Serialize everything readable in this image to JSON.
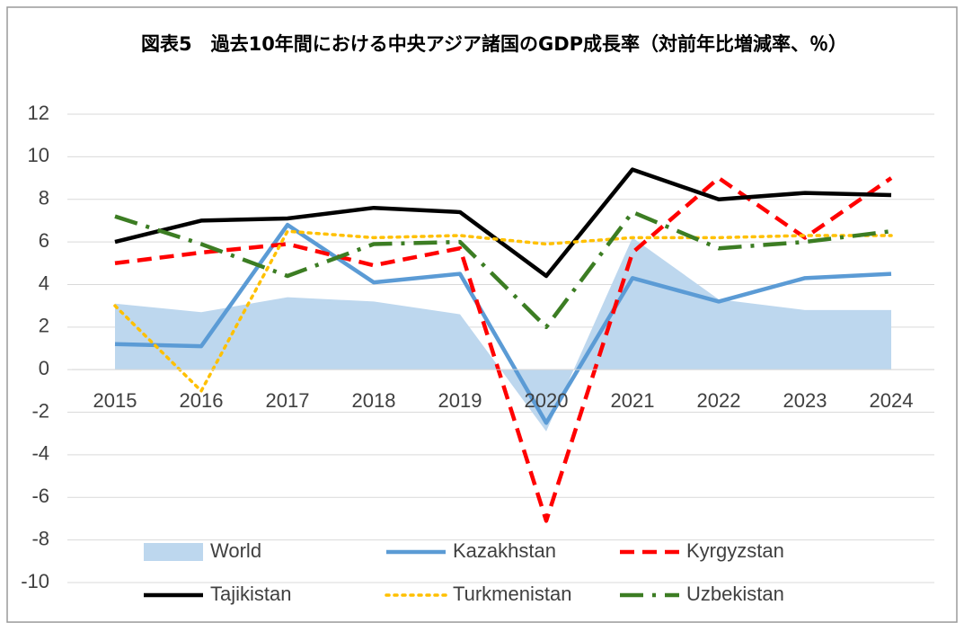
{
  "chart_data": {
    "type": "line",
    "title": "図表5　過去10年間における中央アジア諸国のGDP成長率（対前年比増減率、％）",
    "categories": [
      "2015",
      "2016",
      "2017",
      "2018",
      "2019",
      "2020",
      "2021",
      "2022",
      "2023",
      "2024"
    ],
    "ylim": [
      -10,
      12
    ],
    "yticks": [
      -10,
      -8,
      -6,
      -4,
      -2,
      0,
      2,
      4,
      6,
      8,
      10,
      12
    ],
    "grid": true,
    "legend": "bottom",
    "series": [
      {
        "name": "World",
        "type": "area",
        "color": "#bdd7ee",
        "values": [
          3.1,
          2.7,
          3.4,
          3.2,
          2.6,
          -2.9,
          6.2,
          3.3,
          2.8,
          2.8
        ]
      },
      {
        "name": "Kazakhstan",
        "color": "#5b9bd5",
        "dash": "solid",
        "values": [
          1.2,
          1.1,
          6.8,
          4.1,
          4.5,
          -2.5,
          4.3,
          3.2,
          4.3,
          4.5
        ]
      },
      {
        "name": "Kyrgyzstan",
        "color": "#ff0000",
        "dash": "dash",
        "values": [
          5.0,
          5.5,
          5.9,
          4.9,
          5.7,
          -7.1,
          5.5,
          9.0,
          6.2,
          9.0
        ]
      },
      {
        "name": "Tajikistan",
        "color": "#000000",
        "dash": "solid",
        "values": [
          6.0,
          7.0,
          7.1,
          7.6,
          7.4,
          4.4,
          9.4,
          8.0,
          8.3,
          8.2
        ]
      },
      {
        "name": "Turkmenistan",
        "color": "#ffc000",
        "dash": "dot",
        "values": [
          3.0,
          -1.0,
          6.5,
          6.2,
          6.3,
          5.9,
          6.2,
          6.2,
          6.3,
          6.3
        ]
      },
      {
        "name": "Uzbekistan",
        "color": "#3c7d23",
        "dash": "longdashdot",
        "values": [
          7.2,
          5.9,
          4.4,
          5.9,
          6.0,
          2.0,
          7.4,
          5.7,
          6.0,
          6.5
        ]
      }
    ]
  }
}
